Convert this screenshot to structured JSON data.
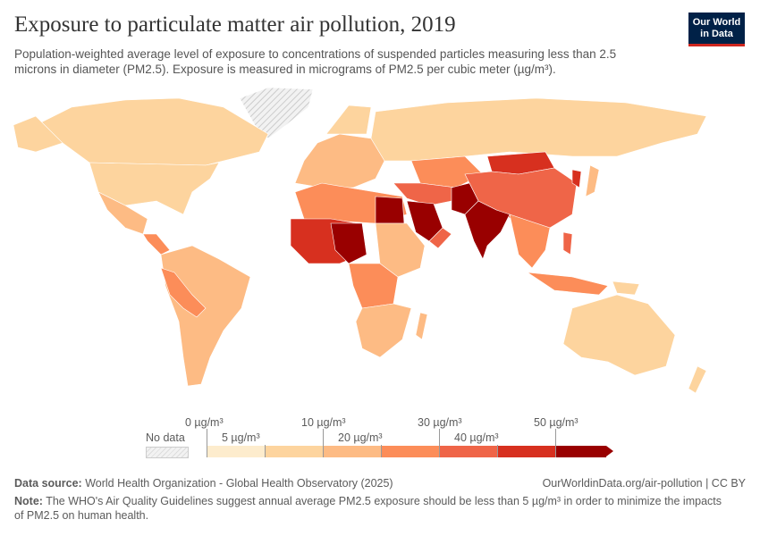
{
  "header": {
    "title": "Exposure to particulate matter air pollution, 2019",
    "subtitle": "Population-weighted average level of exposure to concentrations of suspended particles measuring less than 2.5 microns in diameter (PM2.5). Exposure is measured in micrograms of PM2.5 per cubic meter (µg/m³).",
    "logo_line1": "Our World",
    "logo_line2": "in Data"
  },
  "legend": {
    "no_data": "No data",
    "ticks": [
      "0 µg/m³",
      "5 µg/m³",
      "10 µg/m³",
      "20 µg/m³",
      "30 µg/m³",
      "40 µg/m³",
      "50 µg/m³"
    ],
    "colors": [
      "#fdeccd",
      "#fdd49e",
      "#fdbb84",
      "#fc8d59",
      "#ef6548",
      "#d7301f",
      "#990000"
    ],
    "no_data_color": "#e6e6e6"
  },
  "footer": {
    "source_label": "Data source:",
    "source": "World Health Organization - Global Health Observatory (2025)",
    "url": "OurWorldinData.org/air-pollution | CC BY",
    "note_label": "Note:",
    "note": "The WHO's Air Quality Guidelines suggest annual average PM2.5 exposure should be less than 5 µg/m³ in order to minimize the impacts of PM2.5 on human health."
  }
}
